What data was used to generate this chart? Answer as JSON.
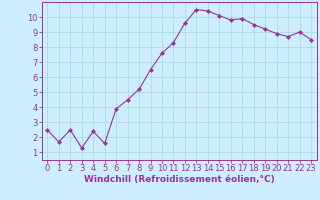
{
  "x": [
    0,
    1,
    2,
    3,
    4,
    5,
    6,
    7,
    8,
    9,
    10,
    11,
    12,
    13,
    14,
    15,
    16,
    17,
    18,
    19,
    20,
    21,
    22,
    23
  ],
  "y": [
    2.5,
    1.7,
    2.5,
    1.3,
    2.4,
    1.6,
    3.9,
    4.5,
    5.2,
    6.5,
    7.6,
    8.3,
    9.6,
    10.5,
    10.4,
    10.1,
    9.8,
    9.9,
    9.5,
    9.2,
    8.9,
    8.7,
    9.0,
    8.5
  ],
  "line_color": "#993399",
  "marker": "D",
  "marker_size": 2,
  "bg_color": "#cceeff",
  "grid_color": "#aadddd",
  "xlabel": "Windchill (Refroidissement éolien,°C)",
  "ylabel": "",
  "xlim": [
    -0.5,
    23.5
  ],
  "ylim": [
    0.5,
    11
  ],
  "xticks": [
    0,
    1,
    2,
    3,
    4,
    5,
    6,
    7,
    8,
    9,
    10,
    11,
    12,
    13,
    14,
    15,
    16,
    17,
    18,
    19,
    20,
    21,
    22,
    23
  ],
  "yticks": [
    1,
    2,
    3,
    4,
    5,
    6,
    7,
    8,
    9,
    10
  ],
  "tick_color": "#993399",
  "label_color": "#993399",
  "spine_color": "#993399",
  "tick_fontsize": 6,
  "xlabel_fontsize": 6.5,
  "linewidth": 0.8
}
